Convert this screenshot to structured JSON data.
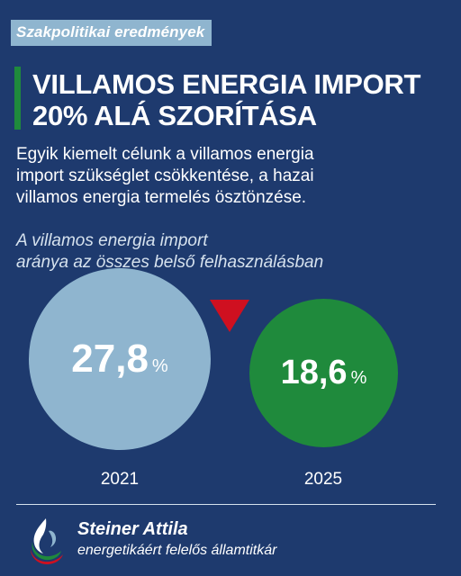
{
  "tag": "Szakpolitikai eredmények",
  "headline": {
    "line1": "VILLAMOS ENERGIA IMPORT",
    "line2": "20% ALÁ SZORÍTÁSA"
  },
  "intro": [
    "Egyik kiemelt célunk a villamos energia",
    "import szükséglet csökkentése, a hazai",
    "villamos energia termelés ösztönzése."
  ],
  "subtitle": [
    "A villamos energia import",
    "aránya az összes belső felhasználásban"
  ],
  "stats": [
    {
      "year": "2021",
      "value": "27,8",
      "unit": "%",
      "color": "#8fb5cf"
    },
    {
      "year": "2025",
      "value": "18,6",
      "unit": "%",
      "color": "#1f8a3c"
    }
  ],
  "indicator": {
    "icon": "down-triangle-icon",
    "color": "#cf1020"
  },
  "footer": {
    "name": "Steiner Attila",
    "role": "energetikáért felelős államtitkár",
    "logo_icon": "flame-logo-icon"
  },
  "colors": {
    "background": "#1e3a6e",
    "accent_green": "#1f8a3c",
    "light_blue": "#8fb5cf",
    "red": "#cf1020"
  }
}
